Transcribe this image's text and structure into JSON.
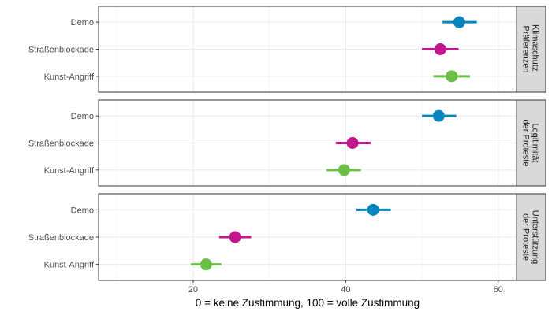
{
  "chart_data": {
    "type": "dot-errorbar",
    "xlabel": "0 = keine Zustimmung, 100 = volle Zustimmung",
    "ylabel": "",
    "xlim": [
      7.6,
      62.4
    ],
    "xticks": [
      20,
      40,
      60
    ],
    "grid": true,
    "categories": [
      "Demo",
      "Straßenblockade",
      "Kunst-Angriff"
    ],
    "colors": {
      "Demo": "#0587bd",
      "Straßenblockade": "#c4168c",
      "Kunst-Angriff": "#6abf45"
    },
    "facets": [
      {
        "label": "Klimaschutz-\nPräferenzen",
        "points": [
          {
            "category": "Demo",
            "value": 54.9,
            "low": 52.7,
            "high": 57.2
          },
          {
            "category": "Straßenblockade",
            "value": 52.4,
            "low": 50.0,
            "high": 54.8
          },
          {
            "category": "Kunst-Angriff",
            "value": 53.9,
            "low": 51.5,
            "high": 56.3
          }
        ]
      },
      {
        "label": "Legitimität\nder Proteste",
        "points": [
          {
            "category": "Demo",
            "value": 52.2,
            "low": 50.0,
            "high": 54.5
          },
          {
            "category": "Straßenblockade",
            "value": 40.9,
            "low": 38.7,
            "high": 43.3
          },
          {
            "category": "Kunst-Angriff",
            "value": 39.8,
            "low": 37.5,
            "high": 42.0
          }
        ]
      },
      {
        "label": "Unterstützung\nder Proteste",
        "points": [
          {
            "category": "Demo",
            "value": 43.6,
            "low": 41.4,
            "high": 45.9
          },
          {
            "category": "Straßenblockade",
            "value": 25.5,
            "low": 23.4,
            "high": 27.6
          },
          {
            "category": "Kunst-Angriff",
            "value": 21.7,
            "low": 19.7,
            "high": 23.7
          }
        ]
      }
    ]
  }
}
